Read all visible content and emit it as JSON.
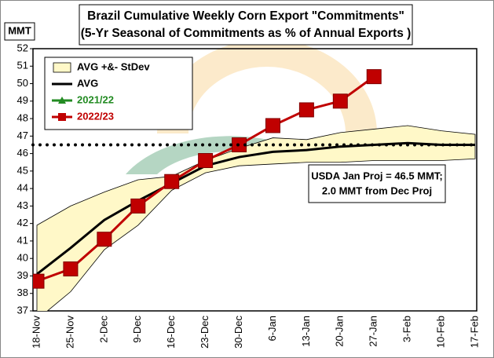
{
  "chart_data": {
    "type": "line",
    "title": [
      "Brazil Cumulative Weekly Corn Export \"Commitments\"",
      "(5-Yr Seasonal of Commitments as % of Annual Exports )"
    ],
    "y_label": "MMT",
    "annotation": [
      "USDA Jan Proj = 46.5 MMT;",
      "2.0 MMT from Dec Proj"
    ],
    "hline": 46.5,
    "categories": [
      "18-Nov",
      "25-Nov",
      "2-Dec",
      "9-Dec",
      "16-Dec",
      "23-Dec",
      "30-Dec",
      "6-Jan",
      "13-Jan",
      "20-Jan",
      "27-Jan",
      "3-Feb",
      "10-Feb",
      "17-Feb"
    ],
    "band": {
      "name": "AVG +&- StDev",
      "color": "#fff8c8",
      "high": [
        41.9,
        43.0,
        43.8,
        44.5,
        44.7,
        45.6,
        46.3,
        46.9,
        46.8,
        47.2,
        47.4,
        47.6,
        47.3,
        47.1
      ],
      "low": [
        36.5,
        38.1,
        40.5,
        41.9,
        43.9,
        44.9,
        45.3,
        45.4,
        45.5,
        45.5,
        45.6,
        45.6,
        45.6,
        45.7
      ]
    },
    "series": [
      {
        "name": "AVG",
        "color": "#000000",
        "marker": "none",
        "values": [
          39.1,
          40.6,
          42.2,
          43.3,
          44.3,
          45.3,
          45.8,
          46.1,
          46.2,
          46.4,
          46.5,
          46.6,
          46.5,
          46.5
        ]
      },
      {
        "name": "2021/22",
        "color": "#228b22",
        "marker": "triangle",
        "values": [
          null,
          null,
          null,
          null,
          null,
          null,
          null,
          null,
          null,
          null,
          null,
          null,
          null,
          null
        ]
      },
      {
        "name": "2022/23",
        "color": "#c00000",
        "marker": "square",
        "values": [
          38.7,
          39.4,
          41.1,
          43.0,
          44.4,
          45.6,
          46.5,
          47.6,
          48.5,
          49.0,
          50.4,
          null,
          null,
          null
        ]
      }
    ],
    "ylim": [
      37,
      52
    ],
    "yticks": [
      37,
      38,
      39,
      40,
      41,
      42,
      43,
      44,
      45,
      46,
      47,
      48,
      49,
      50,
      51,
      52
    ]
  }
}
